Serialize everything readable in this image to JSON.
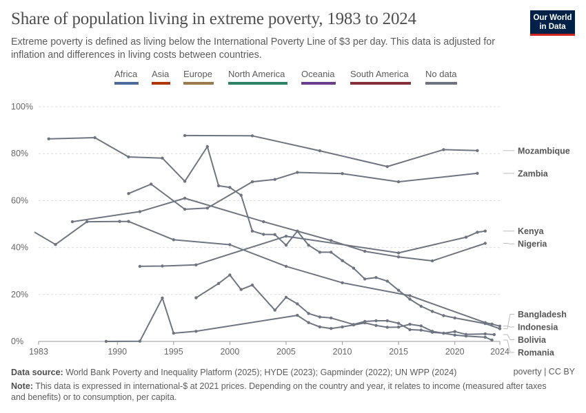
{
  "header": {
    "title": "Share of population living in extreme poverty, 1983 to 2024",
    "subtitle": "Extreme poverty is defined as living below the International Poverty Line of $3 per day. This data is adjusted for inflation and differences in living costs between countries.",
    "logo_line1": "Our World",
    "logo_line2": "in Data"
  },
  "legend": [
    {
      "label": "Africa",
      "color": "#4c6a9c"
    },
    {
      "label": "Asia",
      "color": "#b13507"
    },
    {
      "label": "Europe",
      "color": "#9a7a4a"
    },
    {
      "label": "North America",
      "color": "#2c8465"
    },
    {
      "label": "Oceania",
      "color": "#6b3d8d"
    },
    {
      "label": "South America",
      "color": "#883039"
    },
    {
      "label": "No data",
      "color": "#6e7581"
    }
  ],
  "footer": {
    "source_label": "Data source:",
    "source_text": "World Bank Poverty and Inequality Platform (2025); HYDE (2023); Gapminder (2022); UN WPP (2024)",
    "note_label": "Note:",
    "note_text": "This data is expressed in international-$ at 2021 prices. Depending on the country and year, it relates to income (measured after taxes and benefits) or to consumption, per capita.",
    "credit": "poverty | CC BY"
  },
  "chart_data": {
    "type": "line",
    "title": "Share of population living in extreme poverty, 1983 to 2024",
    "xlabel": "",
    "ylabel": "",
    "xlim": [
      1983,
      2024
    ],
    "ylim": [
      0,
      100
    ],
    "x_ticks": [
      1983,
      1990,
      1995,
      2000,
      2005,
      2010,
      2015,
      2020,
      2024
    ],
    "y_ticks": [
      0,
      20,
      40,
      60,
      80,
      100
    ],
    "y_tick_labels": [
      "0%",
      "20%",
      "40%",
      "60%",
      "80%",
      "100%"
    ],
    "grid": true,
    "line_color": "#6e7581",
    "series": [
      {
        "name": "Mozambique",
        "points": [
          [
            1996,
            87.7
          ],
          [
            2002,
            87.6
          ],
          [
            2008,
            81.2
          ],
          [
            2014,
            74.5
          ],
          [
            2019,
            81.7
          ],
          [
            2022,
            81.3
          ]
        ]
      },
      {
        "name": "Zambia",
        "points": [
          [
            1991,
            63.0
          ],
          [
            1993,
            67.0
          ],
          [
            1996,
            56.3
          ],
          [
            1998,
            56.8
          ],
          [
            2002,
            68.0
          ],
          [
            2004,
            69.0
          ],
          [
            2006,
            72.0
          ],
          [
            2010,
            71.5
          ],
          [
            2015,
            68.0
          ],
          [
            2022,
            71.6
          ]
        ]
      },
      {
        "name": "Kenya",
        "points": [
          [
            1992,
            32.0
          ],
          [
            1994,
            32.1
          ],
          [
            1997,
            32.6
          ],
          [
            2005,
            44.8
          ],
          [
            2015,
            37.7
          ],
          [
            2021,
            44.4
          ],
          [
            2022,
            46.5
          ],
          [
            2022.7,
            47.0
          ]
        ]
      },
      {
        "name": "Nigeria",
        "points": [
          [
            1986,
            51.0
          ],
          [
            1992,
            55.3
          ],
          [
            1996,
            61.0
          ],
          [
            2003,
            51.0
          ],
          [
            2009,
            43.0
          ],
          [
            2012,
            38.4
          ],
          [
            2015,
            36.0
          ],
          [
            2018,
            34.3
          ],
          [
            2022.7,
            41.8
          ]
        ]
      },
      {
        "name": "Bangladesh",
        "points": [
          [
            1983.9,
            86.3
          ],
          [
            1988,
            86.8
          ],
          [
            1991,
            78.6
          ],
          [
            1994,
            78.1
          ],
          [
            1996,
            68.2
          ],
          [
            1998,
            83.0
          ],
          [
            1999,
            66.3
          ],
          [
            2000,
            65.6
          ],
          [
            2001,
            62.3
          ],
          [
            2002,
            47.0
          ],
          [
            2003,
            45.6
          ],
          [
            2004,
            45.5
          ],
          [
            2005,
            41.0
          ],
          [
            2006,
            47.0
          ],
          [
            2007,
            41.0
          ],
          [
            2008,
            38.0
          ],
          [
            2009,
            38.0
          ],
          [
            2010,
            34.4
          ],
          [
            2011,
            31.2
          ],
          [
            2012,
            26.6
          ],
          [
            2013,
            27.2
          ],
          [
            2014,
            25.7
          ],
          [
            2015,
            21.8
          ],
          [
            2016,
            18.0
          ],
          [
            2017,
            15.0
          ],
          [
            2018,
            12.8
          ],
          [
            2019,
            11.0
          ],
          [
            2020,
            10.0
          ],
          [
            2022.7,
            7.6
          ],
          [
            2024,
            5.4
          ]
        ]
      },
      {
        "name": "Indonesia",
        "points": [
          [
            1982.4,
            47.2
          ],
          [
            1984.5,
            41.3
          ],
          [
            1987.3,
            51.0
          ],
          [
            1990.2,
            51.1
          ],
          [
            1991,
            51.1
          ],
          [
            1995,
            43.3
          ],
          [
            2000,
            41.2
          ],
          [
            2005,
            32.0
          ],
          [
            2010,
            25.0
          ],
          [
            2016,
            19.5
          ],
          [
            2022.7,
            8.0
          ],
          [
            2023.3,
            7.4
          ],
          [
            2024,
            6.5
          ]
        ]
      },
      {
        "name": "Bolivia",
        "points": [
          [
            1997,
            18.6
          ],
          [
            1999,
            24.7
          ],
          [
            2000,
            28.3
          ],
          [
            2001,
            22.1
          ],
          [
            2002,
            24.0
          ],
          [
            2004,
            13.3
          ],
          [
            2005,
            18.8
          ],
          [
            2006,
            16.0
          ],
          [
            2007,
            11.9
          ],
          [
            2008,
            10.4
          ],
          [
            2009,
            10.0
          ],
          [
            2011,
            7.2
          ],
          [
            2012,
            8.5
          ],
          [
            2013,
            8.8
          ],
          [
            2014,
            8.8
          ],
          [
            2015,
            7.7
          ],
          [
            2016,
            5.0
          ],
          [
            2017,
            4.8
          ],
          [
            2018,
            3.9
          ],
          [
            2019,
            3.5
          ],
          [
            2020,
            4.2
          ],
          [
            2021,
            3.0
          ],
          [
            2022.7,
            3.2
          ],
          [
            2023.5,
            2.9
          ]
        ]
      },
      {
        "name": "Romania",
        "points": [
          [
            1989,
            0.0
          ],
          [
            1992,
            0.1
          ],
          [
            1994,
            18.5
          ],
          [
            1995,
            3.5
          ],
          [
            1997,
            4.3
          ],
          [
            2006,
            11.1
          ],
          [
            2007,
            8.0
          ],
          [
            2008,
            6.2
          ],
          [
            2009,
            5.5
          ],
          [
            2010,
            6.2
          ],
          [
            2011,
            7.0
          ],
          [
            2012,
            7.9
          ],
          [
            2013,
            6.8
          ],
          [
            2014,
            6.0
          ],
          [
            2015,
            6.1
          ],
          [
            2016,
            7.3
          ],
          [
            2017,
            6.6
          ],
          [
            2018,
            4.3
          ],
          [
            2019,
            3.5
          ],
          [
            2020,
            2.7
          ],
          [
            2021,
            2.3
          ],
          [
            2022.7,
            1.8
          ],
          [
            2023.3,
            0.6
          ]
        ]
      }
    ],
    "label_order": [
      "Mozambique",
      "Zambia",
      "Kenya",
      "Nigeria",
      "Bangladesh",
      "Indonesia",
      "Bolivia",
      "Romania"
    ]
  }
}
